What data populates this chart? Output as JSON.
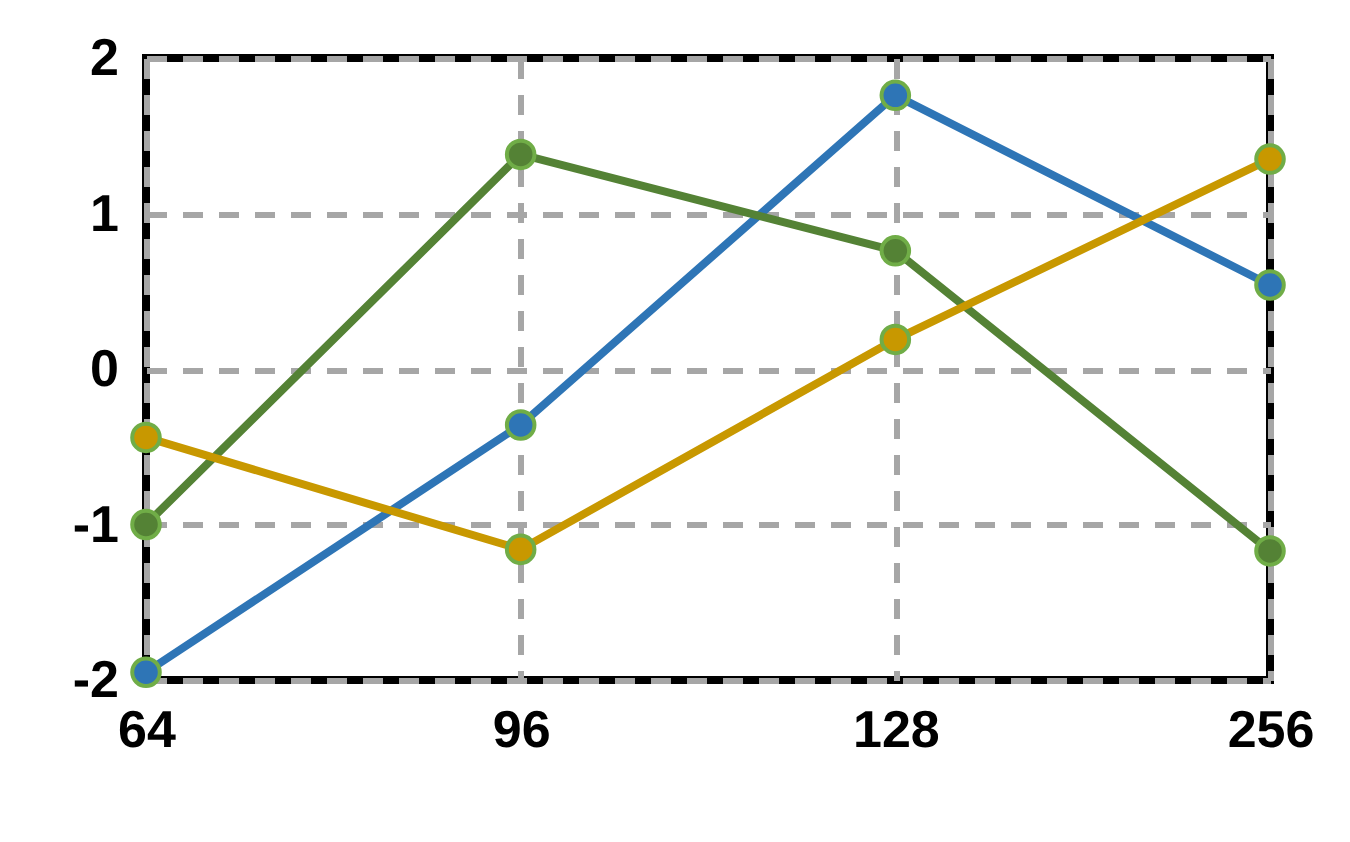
{
  "chart_data": {
    "type": "line",
    "categories": [
      "64",
      "96",
      "128",
      "256"
    ],
    "series": [
      {
        "color": "#2e75b6",
        "values": [
          -1.95,
          -0.36,
          1.76,
          0.54
        ]
      },
      {
        "color": "#548235",
        "values": [
          -1.0,
          1.38,
          0.76,
          -1.17
        ]
      },
      {
        "color": "#c89800",
        "values": [
          -0.44,
          -1.16,
          0.19,
          1.35
        ]
      }
    ],
    "ylim": [
      -2,
      2
    ],
    "yticks": [
      -2,
      -1,
      0,
      1,
      2
    ],
    "grid": true,
    "marker": "circle",
    "line_style": "solid"
  }
}
